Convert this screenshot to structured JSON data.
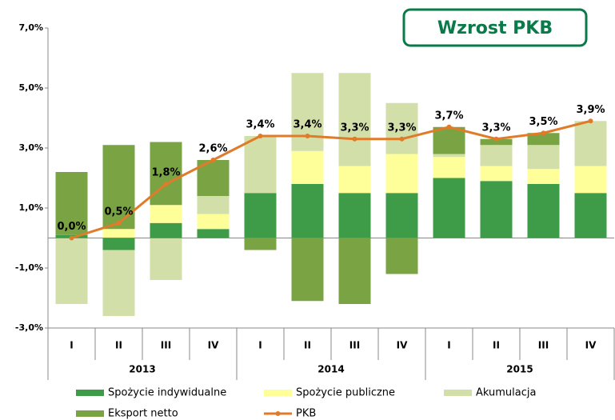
{
  "chart_data": {
    "type": "stacked-bar-line",
    "title": "Wzrost PKB",
    "categories": [
      "I",
      "II",
      "III",
      "IV",
      "I",
      "II",
      "III",
      "IV",
      "I",
      "II",
      "III",
      "IV"
    ],
    "groups": [
      "2013",
      "2014",
      "2015"
    ],
    "series": [
      {
        "name": "Spożycie indywidualne",
        "color": "#3e9b47",
        "values": [
          0.1,
          -0.4,
          0.5,
          0.3,
          1.5,
          1.8,
          1.5,
          1.5,
          2.0,
          1.9,
          1.8,
          1.5
        ]
      },
      {
        "name": "Spożycie publiczne",
        "color": "#ffff99",
        "values": [
          0,
          0.3,
          0.6,
          0.5,
          0,
          1.1,
          0.9,
          1.3,
          0.7,
          0.5,
          0.5,
          0.9
        ]
      },
      {
        "name": "Akumulacja",
        "color": "#d3dfa9",
        "values": [
          -2.2,
          -2.2,
          -1.4,
          0.6,
          1.9,
          2.6,
          3.1,
          1.7,
          0.1,
          0.7,
          0.8,
          1.5
        ]
      },
      {
        "name": "Eksport netto",
        "color": "#7aa444",
        "values": [
          2.1,
          2.8,
          2.1,
          1.2,
          -0.4,
          -2.1,
          -2.2,
          -1.2,
          0.9,
          0.2,
          0.4,
          0
        ]
      },
      {
        "name": "PKB",
        "type": "line",
        "color": "#e07b2a",
        "values": [
          0.0,
          0.5,
          1.8,
          2.6,
          3.4,
          3.4,
          3.3,
          3.3,
          3.7,
          3.3,
          3.5,
          3.9
        ],
        "value_labels": [
          "0,0%",
          "0,5%",
          "1,8%",
          "2,6%",
          "3,4%",
          "3,4%",
          "3,3%",
          "3,3%",
          "3,7%",
          "3,3%",
          "3,5%",
          "3,9%"
        ]
      }
    ],
    "ylim": [
      -3,
      7
    ],
    "yticks": [
      {
        "value": -3,
        "label": "-3,0%"
      },
      {
        "value": -1,
        "label": "-1,0%"
      },
      {
        "value": 1,
        "label": "1,0%"
      },
      {
        "value": 3,
        "label": "3,0%"
      },
      {
        "value": 5,
        "label": "5,0%"
      },
      {
        "value": 7,
        "label": "7,0%"
      }
    ],
    "grid": false,
    "legend": "bottom"
  }
}
